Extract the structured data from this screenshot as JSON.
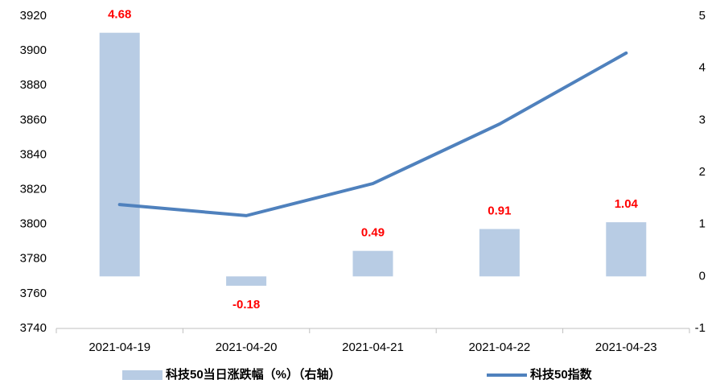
{
  "chart_data": {
    "type": "combo",
    "categories": [
      "2021-04-19",
      "2021-04-20",
      "2021-04-21",
      "2021-04-22",
      "2021-04-23"
    ],
    "series": [
      {
        "name": "科技50当日涨跌幅（%）（右轴）",
        "type": "bar",
        "axis": "y2",
        "color": "#b8cce4",
        "values": [
          4.68,
          -0.18,
          0.49,
          0.91,
          1.04
        ]
      },
      {
        "name": "科技50指数",
        "type": "line",
        "color": "#4f81bd",
        "values": [
          3811.4,
          3805,
          3823.5,
          3857.8,
          3898.7
        ]
      }
    ],
    "ylim": [
      3740,
      3920
    ],
    "yticks": [
      3740,
      3760,
      3780,
      3800,
      3820,
      3840,
      3860,
      3880,
      3900,
      3920
    ],
    "y2lim": [
      -1,
      5
    ],
    "y2ticks": [
      -1,
      0,
      1,
      2,
      3,
      4,
      5
    ],
    "legend": "bottom"
  }
}
